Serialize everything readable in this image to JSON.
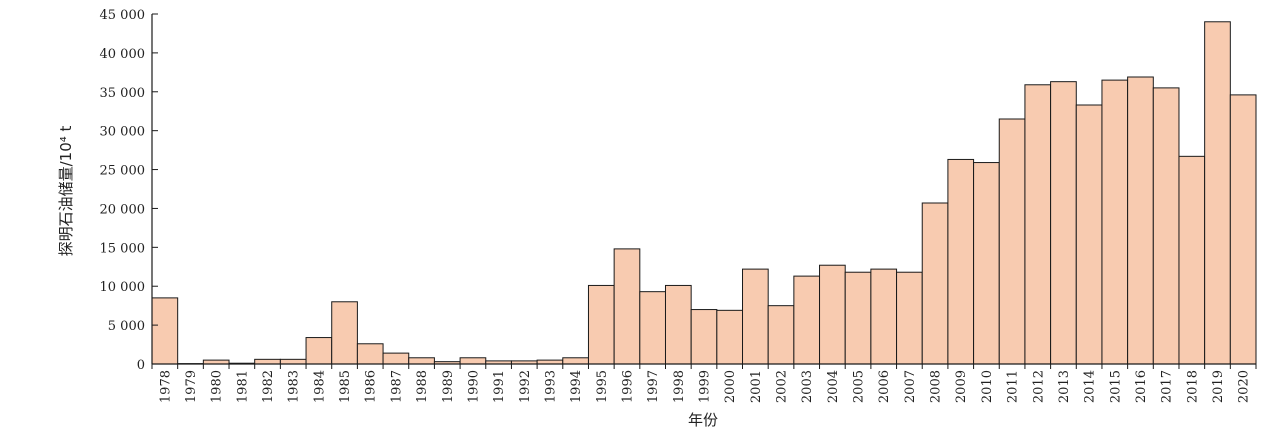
{
  "chart_data": {
    "type": "bar",
    "xlabel": "年份",
    "ylabel": "探明石油储量/10⁴ t",
    "ylim": [
      0,
      45000
    ],
    "yticks": [
      0,
      5000,
      10000,
      15000,
      20000,
      25000,
      30000,
      35000,
      40000,
      45000
    ],
    "ytick_labels": [
      "0",
      "5 000",
      "10 000",
      "15 000",
      "20 000",
      "25 000",
      "30 000",
      "35 000",
      "40 000",
      "45 000"
    ],
    "categories": [
      "1978",
      "1979",
      "1980",
      "1981",
      "1982",
      "1983",
      "1984",
      "1985",
      "1986",
      "1987",
      "1988",
      "1989",
      "1990",
      "1991",
      "1992",
      "1993",
      "1994",
      "1995",
      "1996",
      "1997",
      "1998",
      "1999",
      "2000",
      "2001",
      "2002",
      "2003",
      "2004",
      "2005",
      "2006",
      "2007",
      "2008",
      "2009",
      "2010",
      "2011",
      "2012",
      "2013",
      "2014",
      "2015",
      "2016",
      "2017",
      "2018",
      "2019",
      "2020"
    ],
    "values": [
      8500,
      50,
      500,
      100,
      600,
      600,
      3400,
      8000,
      2600,
      1400,
      800,
      300,
      800,
      400,
      400,
      500,
      800,
      10100,
      14800,
      9300,
      10100,
      7000,
      6900,
      12200,
      7500,
      11300,
      12700,
      11800,
      12200,
      11800,
      20700,
      26300,
      25900,
      31500,
      35900,
      36300,
      33300,
      36500,
      36900,
      35500,
      26700,
      44000,
      34600
    ],
    "grid": false,
    "legend": "none",
    "colors": {
      "bar_fill": "#f8cbb0",
      "bar_stroke": "#1a1a1a",
      "axis": "#1a1a1a"
    }
  }
}
